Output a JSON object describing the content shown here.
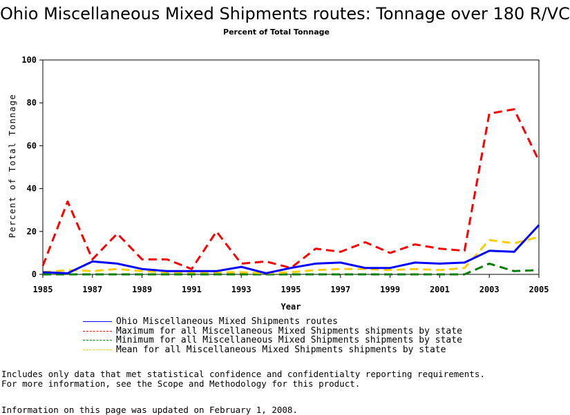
{
  "chart_data": {
    "type": "line",
    "title": "Ohio Miscellaneous Mixed Shipments routes: Tonnage over 180 R/VC",
    "subtitle": "Percent of Total Tonnage",
    "xlabel": "Year",
    "ylabel": "Percent of Total Tonnage",
    "ylim": [
      0,
      100
    ],
    "xlim": [
      1985,
      2005
    ],
    "yticks": [
      0,
      20,
      40,
      60,
      80,
      100
    ],
    "xticks": [
      1985,
      1987,
      1989,
      1991,
      1993,
      1995,
      1997,
      1999,
      2001,
      2003,
      2005
    ],
    "x": [
      1985,
      1986,
      1987,
      1988,
      1989,
      1990,
      1991,
      1992,
      1993,
      1994,
      1995,
      1996,
      1997,
      1998,
      1999,
      2000,
      2001,
      2002,
      2003,
      2004,
      2005
    ],
    "series": [
      {
        "name": "Ohio Miscellaneous Mixed Shipments routes",
        "color": "#0000ff",
        "style": "solid",
        "values": [
          1,
          0.5,
          6,
          5,
          2.5,
          1.5,
          1.5,
          1.5,
          3.5,
          0.5,
          3,
          5,
          5.5,
          3,
          3,
          5.5,
          5,
          5.5,
          11,
          10.5,
          23
        ]
      },
      {
        "name": "Maximum for all Miscellaneous Mixed Shipments shipments by state",
        "color": "#ff0000",
        "style": "dashed",
        "values": [
          4,
          34,
          7,
          19,
          7,
          7,
          2.5,
          20,
          5,
          6,
          3,
          12,
          10.5,
          15,
          10,
          14,
          12,
          11,
          75,
          77,
          53
        ]
      },
      {
        "name": "Minimum for all Miscellaneous Mixed Shipments shipments by state",
        "color": "#007f00",
        "style": "dashed",
        "values": [
          0,
          0,
          0,
          0,
          0,
          0,
          0,
          0,
          0,
          0,
          0,
          0,
          0,
          0,
          0,
          0,
          0,
          0,
          5,
          1.5,
          2
        ]
      },
      {
        "name": "Mean for all Miscellaneous Mixed Shipments shipments by state",
        "color": "#ffcc00",
        "style": "dashed",
        "values": [
          1,
          2,
          1.5,
          2.5,
          1.5,
          1,
          1,
          1,
          1,
          0.5,
          1,
          2,
          2.5,
          2.5,
          2,
          2.5,
          2,
          3,
          16,
          14.5,
          17.5
        ]
      }
    ]
  },
  "notes": {
    "line1": "Includes only data that met statistical confidence and confidentialty reporting requirements.",
    "line2": "For more information, see the Scope and Methodology for this product.",
    "updated": "Information on this page was updated on February 1, 2008."
  }
}
